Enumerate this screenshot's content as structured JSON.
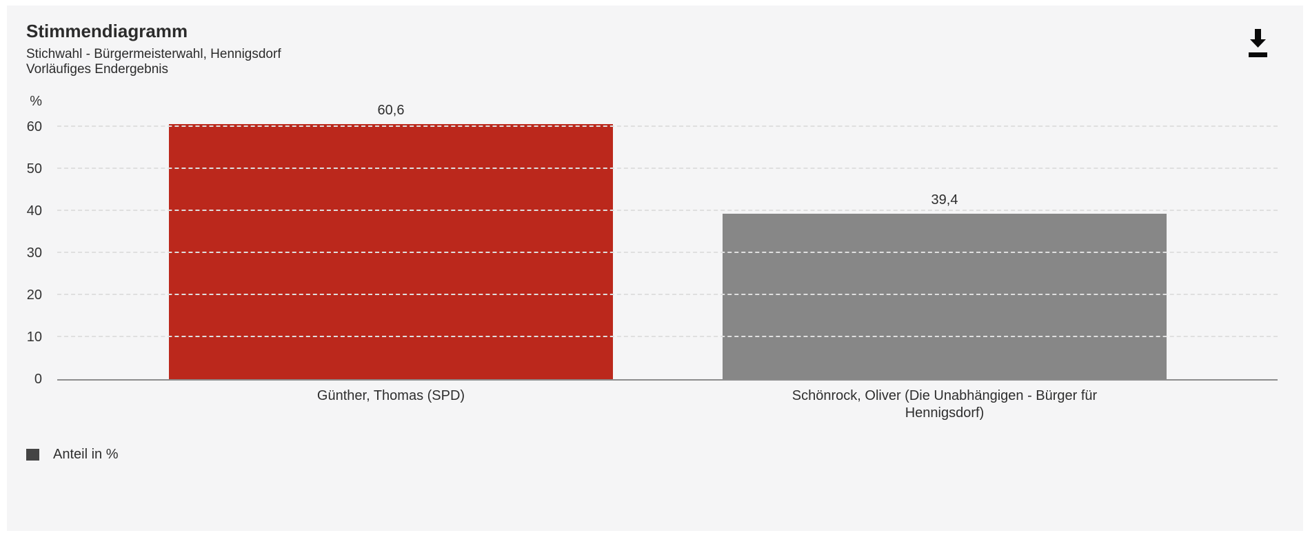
{
  "header": {
    "title": "Stimmendiagramm",
    "subtitle": "Stichwahl - Bürgermeisterwahl, Hennigsdorf",
    "status": "Vorläufiges Endergebnis"
  },
  "toolbar": {
    "download_icon": "download-icon"
  },
  "chart_data": {
    "type": "bar",
    "title": "Stimmendiagramm",
    "subtitle": "Stichwahl - Bürgermeisterwahl, Hennigsdorf",
    "status": "Vorläufiges Endergebnis",
    "unit_label": "%",
    "categories": [
      "Günther, Thomas (SPD)",
      "Schönrock, Oliver (Die Unabhängigen - Bürger für Hennigsdorf)"
    ],
    "series": [
      {
        "name": "Anteil in %",
        "values": [
          60.6,
          39.4
        ]
      }
    ],
    "value_labels": [
      "60,6",
      "39,4"
    ],
    "bar_colors": [
      "#bb281c",
      "#878787"
    ],
    "ylim": [
      0,
      60
    ],
    "yticks": [
      0,
      10,
      20,
      30,
      40,
      50,
      60
    ],
    "grid": "dashed-horizontal",
    "legend": {
      "label": "Anteil in %",
      "swatch_color": "#444444",
      "position": "bottom-left"
    },
    "colors": {
      "panel_background": "#f5f5f6",
      "axis_line": "#8c8c8c",
      "gridline": "#dfdfdf",
      "text": "#2e2e2e"
    }
  }
}
